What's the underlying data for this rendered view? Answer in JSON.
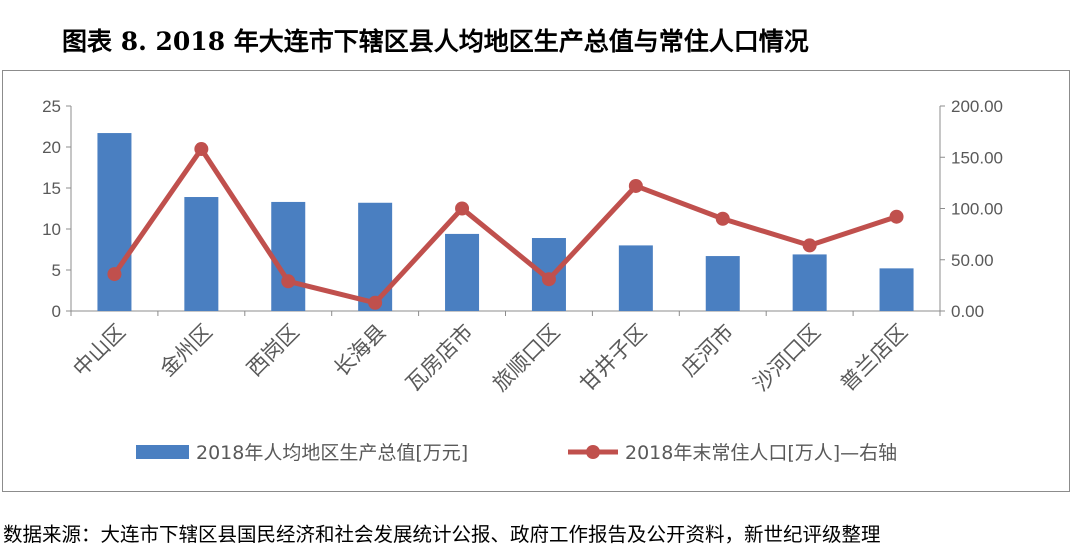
{
  "title": "图表 8. 2018 年大连市下辖区县人均地区生产总值与常住人口情况",
  "source": "数据来源：大连市下辖区县国民经济和社会发展统计公报、政府工作报告及公开资料，新世纪评级整理",
  "colors": {
    "bar": "#4a7fc1",
    "line": "#c0504d",
    "axis": "#8c8c8c",
    "text": "#595959"
  },
  "chart_data": {
    "type": "bar",
    "categories": [
      "中山区",
      "金州区",
      "西岗区",
      "长海县",
      "瓦房店市",
      "旅顺口区",
      "甘井子区",
      "庄河市",
      "沙河口区",
      "普兰店区"
    ],
    "series": [
      {
        "name": "2018年人均地区生产总值[万元]",
        "type": "bar",
        "axis": "left",
        "values": [
          21.7,
          13.9,
          13.3,
          13.2,
          9.4,
          8.9,
          8.0,
          6.7,
          6.9,
          5.2
        ]
      },
      {
        "name": "2018年末常住人口[万人]—右轴",
        "type": "line",
        "axis": "right",
        "values": [
          36,
          158,
          29,
          8,
          100,
          31,
          122,
          90,
          64,
          92
        ]
      }
    ],
    "y_left": {
      "lim": [
        0,
        25
      ],
      "ticks": [
        "0",
        "5",
        "10",
        "15",
        "20",
        "25"
      ]
    },
    "y_right": {
      "lim": [
        0,
        200
      ],
      "ticks": [
        "0.00",
        "50.00",
        "100.00",
        "150.00",
        "200.00"
      ]
    },
    "legend": "bottom",
    "grid": false
  }
}
